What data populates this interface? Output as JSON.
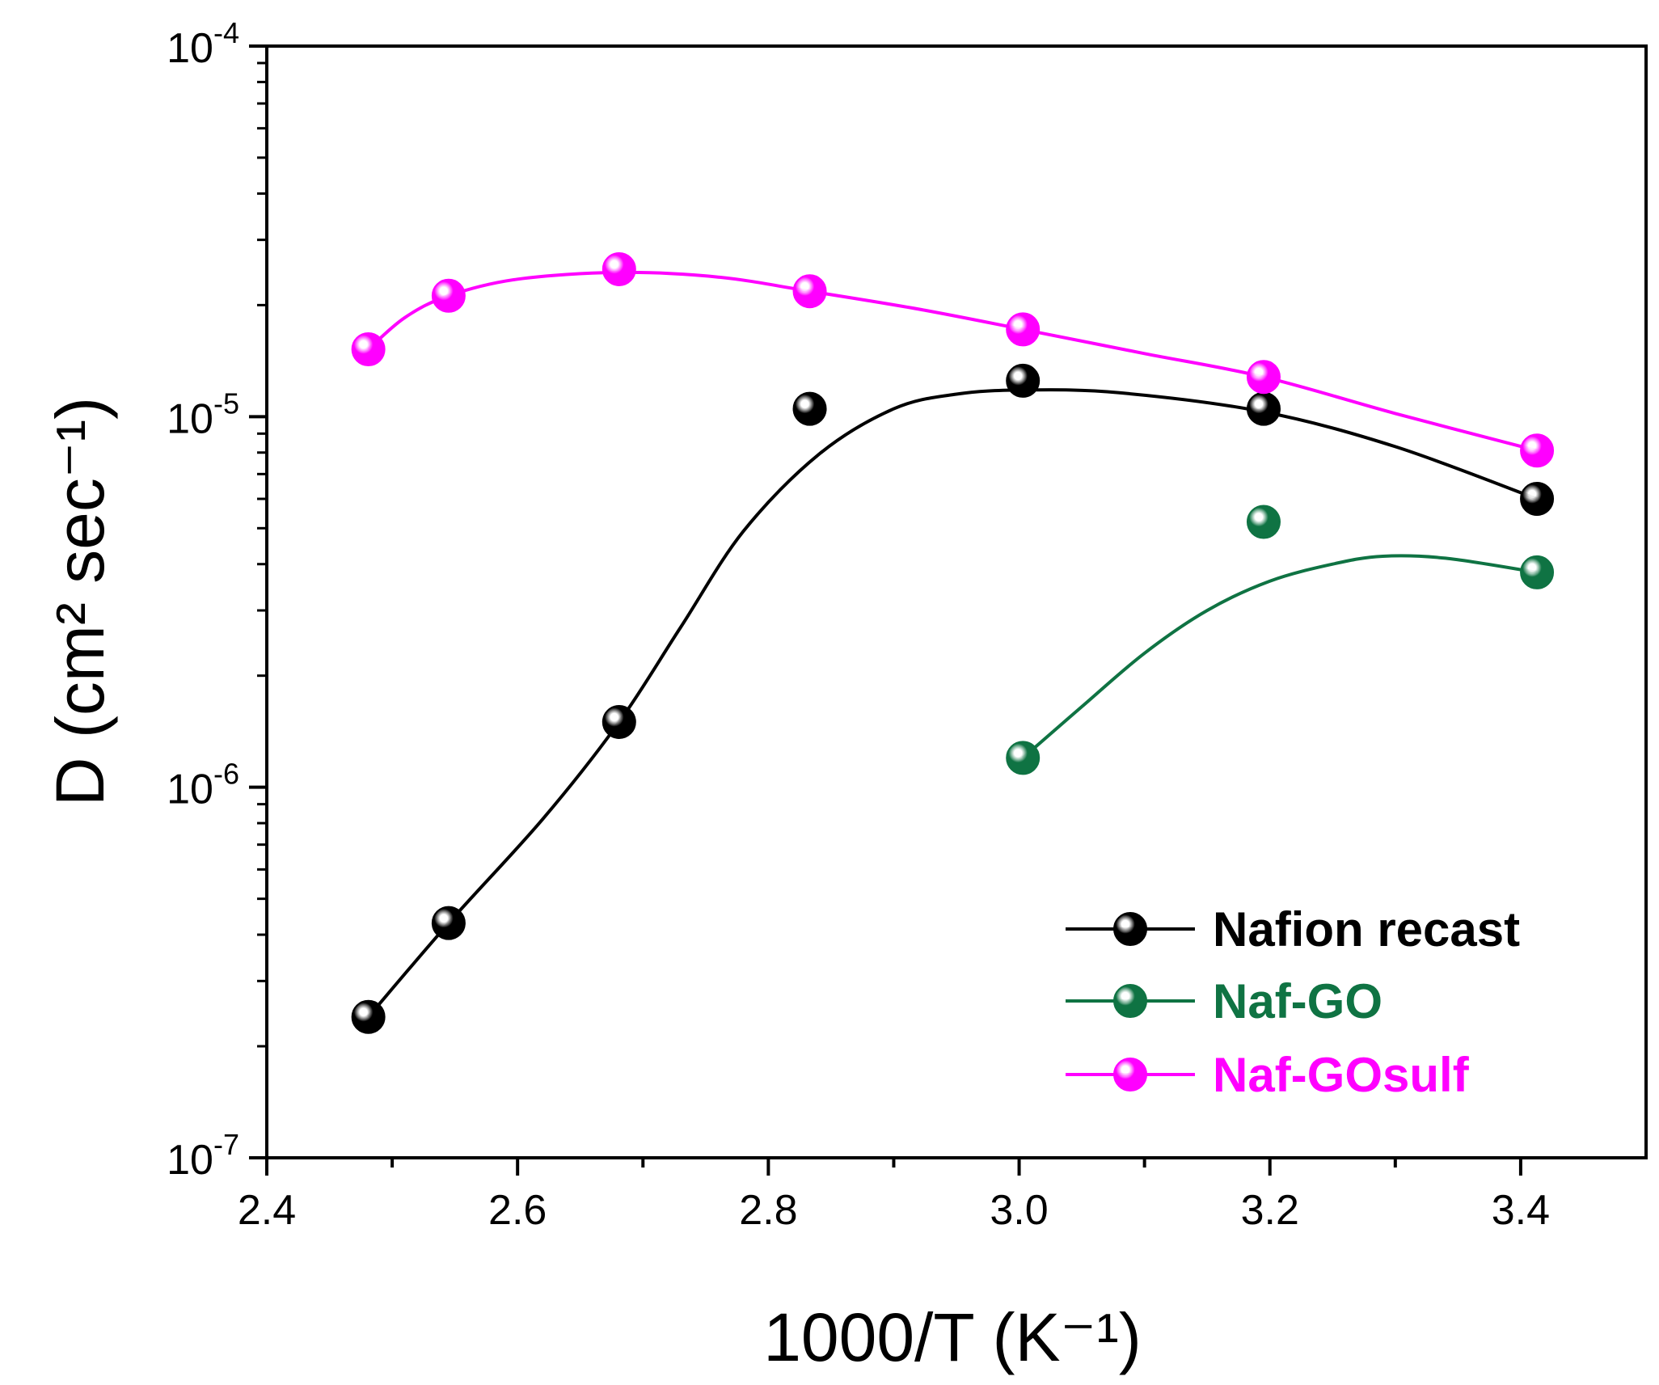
{
  "chart_data": {
    "type": "scatter",
    "title": "",
    "xlabel": "1000/T (K⁻¹)",
    "ylabel": "D (cm² sec⁻¹)",
    "xlim": [
      2.4,
      3.5
    ],
    "ylim": [
      1e-07,
      0.0001
    ],
    "yscale": "log",
    "x_ticks": [
      "2.4",
      "2.6",
      "2.8",
      "3.0",
      "3.2",
      "3.4"
    ],
    "x_tick_values": [
      2.4,
      2.6,
      2.8,
      3.0,
      3.2,
      3.4
    ],
    "y_ticks": [
      {
        "value": 1e-07,
        "base": "10",
        "exp": "-7"
      },
      {
        "value": 1e-06,
        "base": "10",
        "exp": "-6"
      },
      {
        "value": 1e-05,
        "base": "10",
        "exp": "-5"
      },
      {
        "value": 0.0001,
        "base": "10",
        "exp": "-4"
      }
    ],
    "legend_position": "bottom-right",
    "series": [
      {
        "name": "Nafion recast",
        "color": "#000000",
        "marker_fill": "#000000",
        "points": [
          [
            2.481,
            2.4e-07
          ],
          [
            2.545,
            4.3e-07
          ],
          [
            2.681,
            1.5e-06
          ],
          [
            2.833,
            1.05e-05
          ],
          [
            3.003,
            1.25e-05
          ],
          [
            3.195,
            1.05e-05
          ],
          [
            3.413,
            6e-06
          ]
        ],
        "fit": [
          [
            2.481,
            2.4e-07
          ],
          [
            2.545,
            4.3e-07
          ],
          [
            2.62,
            8.2e-07
          ],
          [
            2.681,
            1.5e-06
          ],
          [
            2.73,
            2.7e-06
          ],
          [
            2.78,
            4.9e-06
          ],
          [
            2.84,
            7.9e-06
          ],
          [
            2.9,
            1.05e-05
          ],
          [
            2.95,
            1.15e-05
          ],
          [
            3.003,
            1.18e-05
          ],
          [
            3.08,
            1.16e-05
          ],
          [
            3.195,
            1.03e-05
          ],
          [
            3.3,
            8.3e-06
          ],
          [
            3.413,
            6e-06
          ]
        ]
      },
      {
        "name": "Naf-GO",
        "color": "#0f7343",
        "marker_fill": "#0f7343",
        "points": [
          [
            3.003,
            1.2e-06
          ],
          [
            3.195,
            5.2e-06
          ],
          [
            3.413,
            3.8e-06
          ]
        ],
        "fit": [
          [
            3.003,
            1.2e-06
          ],
          [
            3.05,
            1.65e-06
          ],
          [
            3.1,
            2.3e-06
          ],
          [
            3.15,
            3e-06
          ],
          [
            3.2,
            3.6e-06
          ],
          [
            3.25,
            4e-06
          ],
          [
            3.29,
            4.2e-06
          ],
          [
            3.34,
            4.15e-06
          ],
          [
            3.413,
            3.8e-06
          ]
        ]
      },
      {
        "name": "Naf-GOsulf",
        "color": "#ff00ff",
        "marker_fill": "#ff00ff",
        "points": [
          [
            2.481,
            1.52e-05
          ],
          [
            2.545,
            2.12e-05
          ],
          [
            2.681,
            2.5e-05
          ],
          [
            2.833,
            2.18e-05
          ],
          [
            3.003,
            1.72e-05
          ],
          [
            3.195,
            1.28e-05
          ],
          [
            3.413,
            8.1e-06
          ]
        ],
        "fit": [
          [
            2.481,
            1.52e-05
          ],
          [
            2.51,
            1.85e-05
          ],
          [
            2.545,
            2.12e-05
          ],
          [
            2.6,
            2.35e-05
          ],
          [
            2.681,
            2.45e-05
          ],
          [
            2.76,
            2.38e-05
          ],
          [
            2.833,
            2.18e-05
          ],
          [
            2.92,
            1.95e-05
          ],
          [
            3.003,
            1.72e-05
          ],
          [
            3.1,
            1.48e-05
          ],
          [
            3.195,
            1.28e-05
          ],
          [
            3.3,
            1.02e-05
          ],
          [
            3.413,
            8.1e-06
          ]
        ]
      }
    ]
  }
}
